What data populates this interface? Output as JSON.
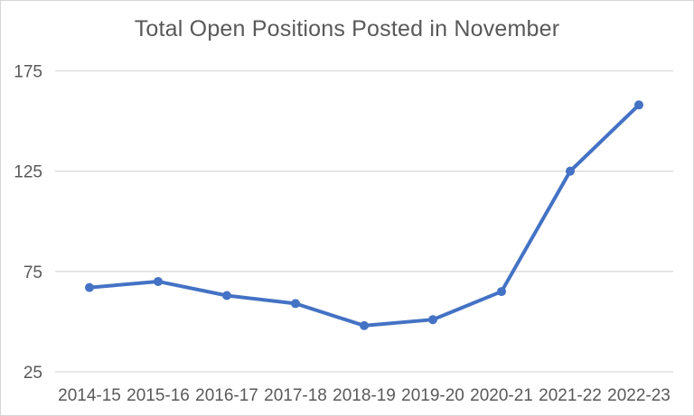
{
  "chart_data": {
    "type": "line",
    "title": "Total Open Positions Posted in November",
    "categories": [
      "2014-15",
      "2015-16",
      "2016-17",
      "2017-18",
      "2018-19",
      "2019-20",
      "2020-21",
      "2021-22",
      "2022-23"
    ],
    "values": [
      67,
      70,
      63,
      59,
      48,
      51,
      65,
      125,
      158
    ],
    "xlabel": "",
    "ylabel": "",
    "ylim": [
      25,
      175
    ],
    "yticks": [
      25,
      75,
      125,
      175
    ],
    "grid": "horizontal",
    "legend": "none",
    "colors": {
      "series": "#4472C4",
      "gridline": "#D9D9D9",
      "tick_label": "#595959",
      "title": "#595959",
      "background": "#FFFFFF",
      "border": "#D6D6D6"
    }
  }
}
